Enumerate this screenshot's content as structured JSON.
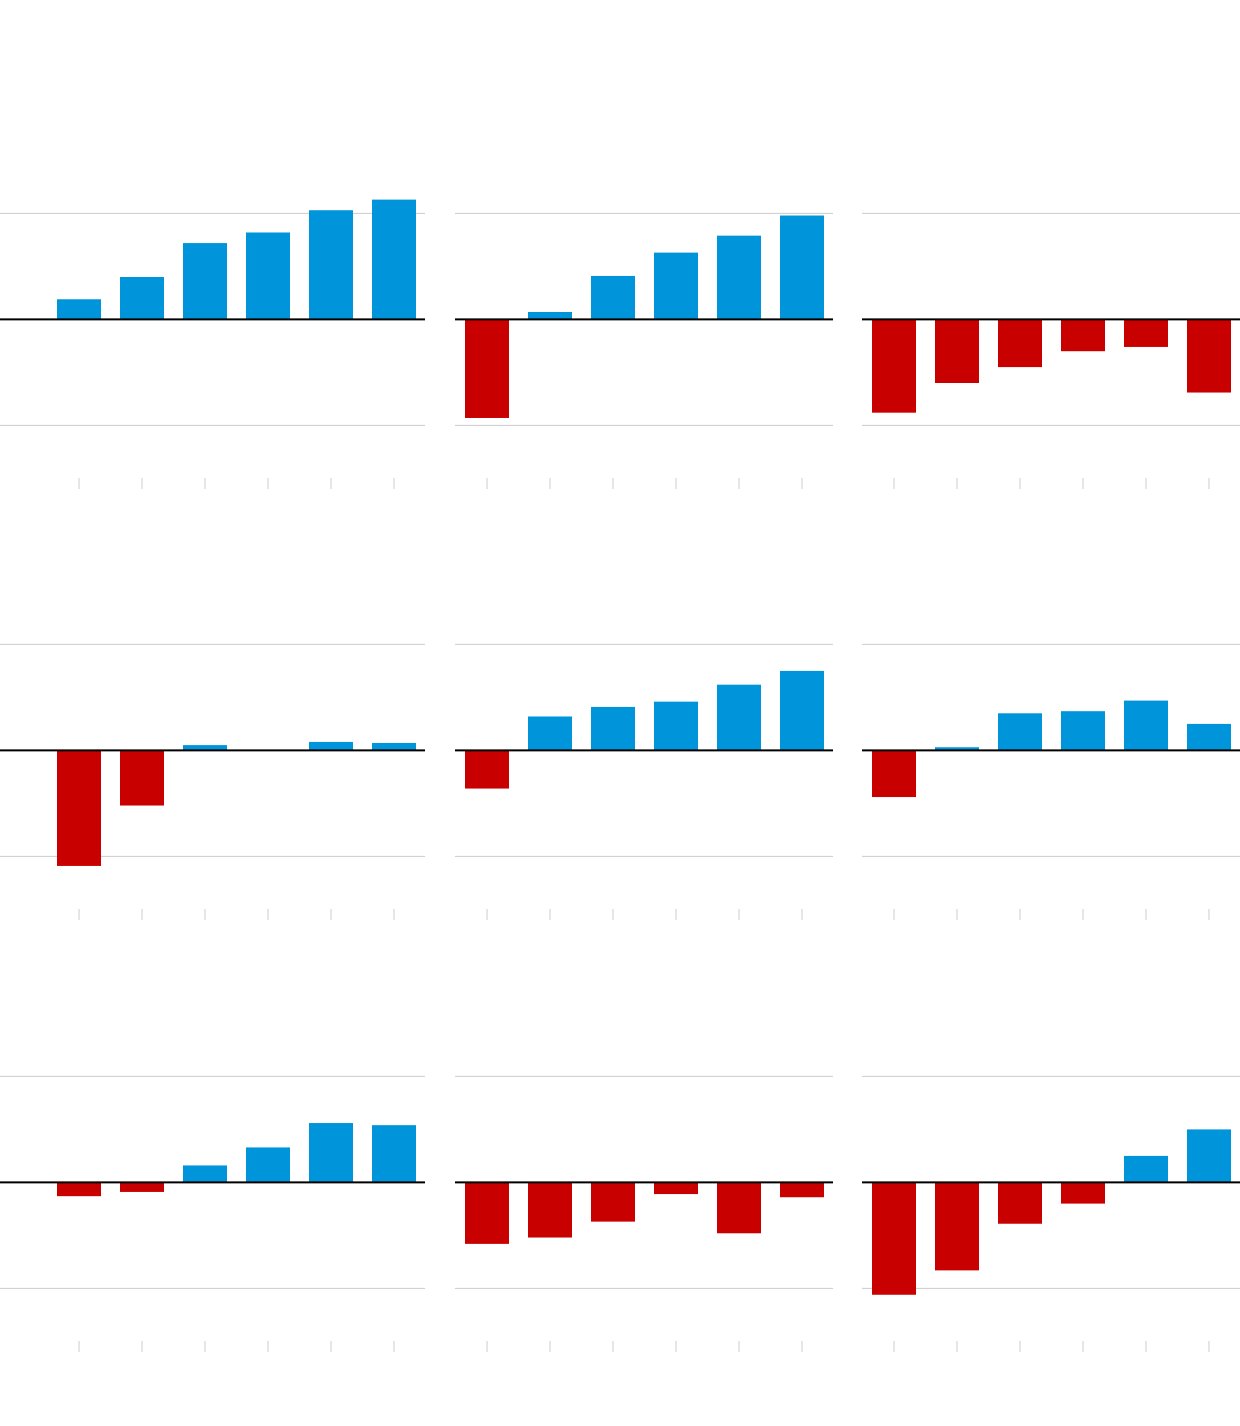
{
  "chart_data": [
    {
      "type": "bar",
      "categories": [
        null,
        null,
        null,
        null,
        null,
        null
      ],
      "values": [
        0.19,
        0.4,
        0.72,
        0.82,
        1.03,
        1.13
      ],
      "color": "#0095db",
      "negative_color": "#c90000",
      "ylim": [
        -1.6,
        2.4
      ],
      "yticks": [
        -1,
        0,
        1
      ],
      "grid": true
    },
    {
      "type": "bar",
      "categories": [
        null,
        null,
        null,
        null,
        null,
        null
      ],
      "values": [
        -0.93,
        0.07,
        0.41,
        0.63,
        0.79,
        0.98
      ],
      "color": "#0095db",
      "negative_color": "#c90000",
      "ylim": [
        -1.6,
        2.4
      ],
      "yticks": [
        -1,
        0,
        1
      ],
      "grid": true
    },
    {
      "type": "bar",
      "categories": [
        null,
        null,
        null,
        null,
        null,
        null
      ],
      "values": [
        -0.88,
        -0.6,
        -0.45,
        -0.3,
        -0.26,
        -0.69
      ],
      "color": "#0095db",
      "negative_color": "#c90000",
      "ylim": [
        -1.6,
        2.4
      ],
      "yticks": [
        -1,
        0,
        1
      ],
      "grid": true
    },
    {
      "type": "bar",
      "categories": [
        null,
        null,
        null,
        null,
        null,
        null
      ],
      "values": [
        -1.09,
        -0.52,
        0.05,
        0,
        0.08,
        0.07
      ],
      "color": "#0095db",
      "negative_color": "#c90000",
      "ylim": [
        -1.6,
        2.4
      ],
      "yticks": [
        -1,
        0,
        1
      ],
      "grid": true
    },
    {
      "type": "bar",
      "categories": [
        null,
        null,
        null,
        null,
        null,
        null
      ],
      "values": [
        -0.36,
        0.32,
        0.41,
        0.46,
        0.62,
        0.75
      ],
      "color": "#0095db",
      "negative_color": "#c90000",
      "ylim": [
        -1.6,
        2.4
      ],
      "yticks": [
        -1,
        0,
        1
      ],
      "grid": true
    },
    {
      "type": "bar",
      "categories": [
        null,
        null,
        null,
        null,
        null,
        null
      ],
      "values": [
        -0.44,
        0.03,
        0.35,
        0.37,
        0.47,
        0.25
      ],
      "color": "#0095db",
      "negative_color": "#c90000",
      "ylim": [
        -1.6,
        2.4
      ],
      "yticks": [
        -1,
        0,
        1
      ],
      "grid": true
    },
    {
      "type": "bar",
      "categories": [
        null,
        null,
        null,
        null,
        null,
        null
      ],
      "values": [
        -0.13,
        -0.09,
        0.16,
        0.33,
        0.56,
        0.54
      ],
      "color": "#0095db",
      "negative_color": "#c90000",
      "ylim": [
        -1.6,
        2.4
      ],
      "yticks": [
        -1,
        0,
        1
      ],
      "grid": true
    },
    {
      "type": "bar",
      "categories": [
        null,
        null,
        null,
        null,
        null,
        null
      ],
      "values": [
        -0.58,
        -0.52,
        -0.37,
        -0.11,
        -0.48,
        -0.14
      ],
      "color": "#0095db",
      "negative_color": "#c90000",
      "ylim": [
        -1.6,
        2.4
      ],
      "yticks": [
        -1,
        0,
        1
      ],
      "grid": true
    },
    {
      "type": "bar",
      "categories": [
        null,
        null,
        null,
        null,
        null,
        null
      ],
      "values": [
        -1.06,
        -0.83,
        -0.39,
        -0.2,
        0.25,
        0.5
      ],
      "color": "#0095db",
      "negative_color": "#c90000",
      "ylim": [
        -1.6,
        2.4
      ],
      "yticks": [
        -1,
        0,
        1
      ],
      "grid": true
    }
  ]
}
